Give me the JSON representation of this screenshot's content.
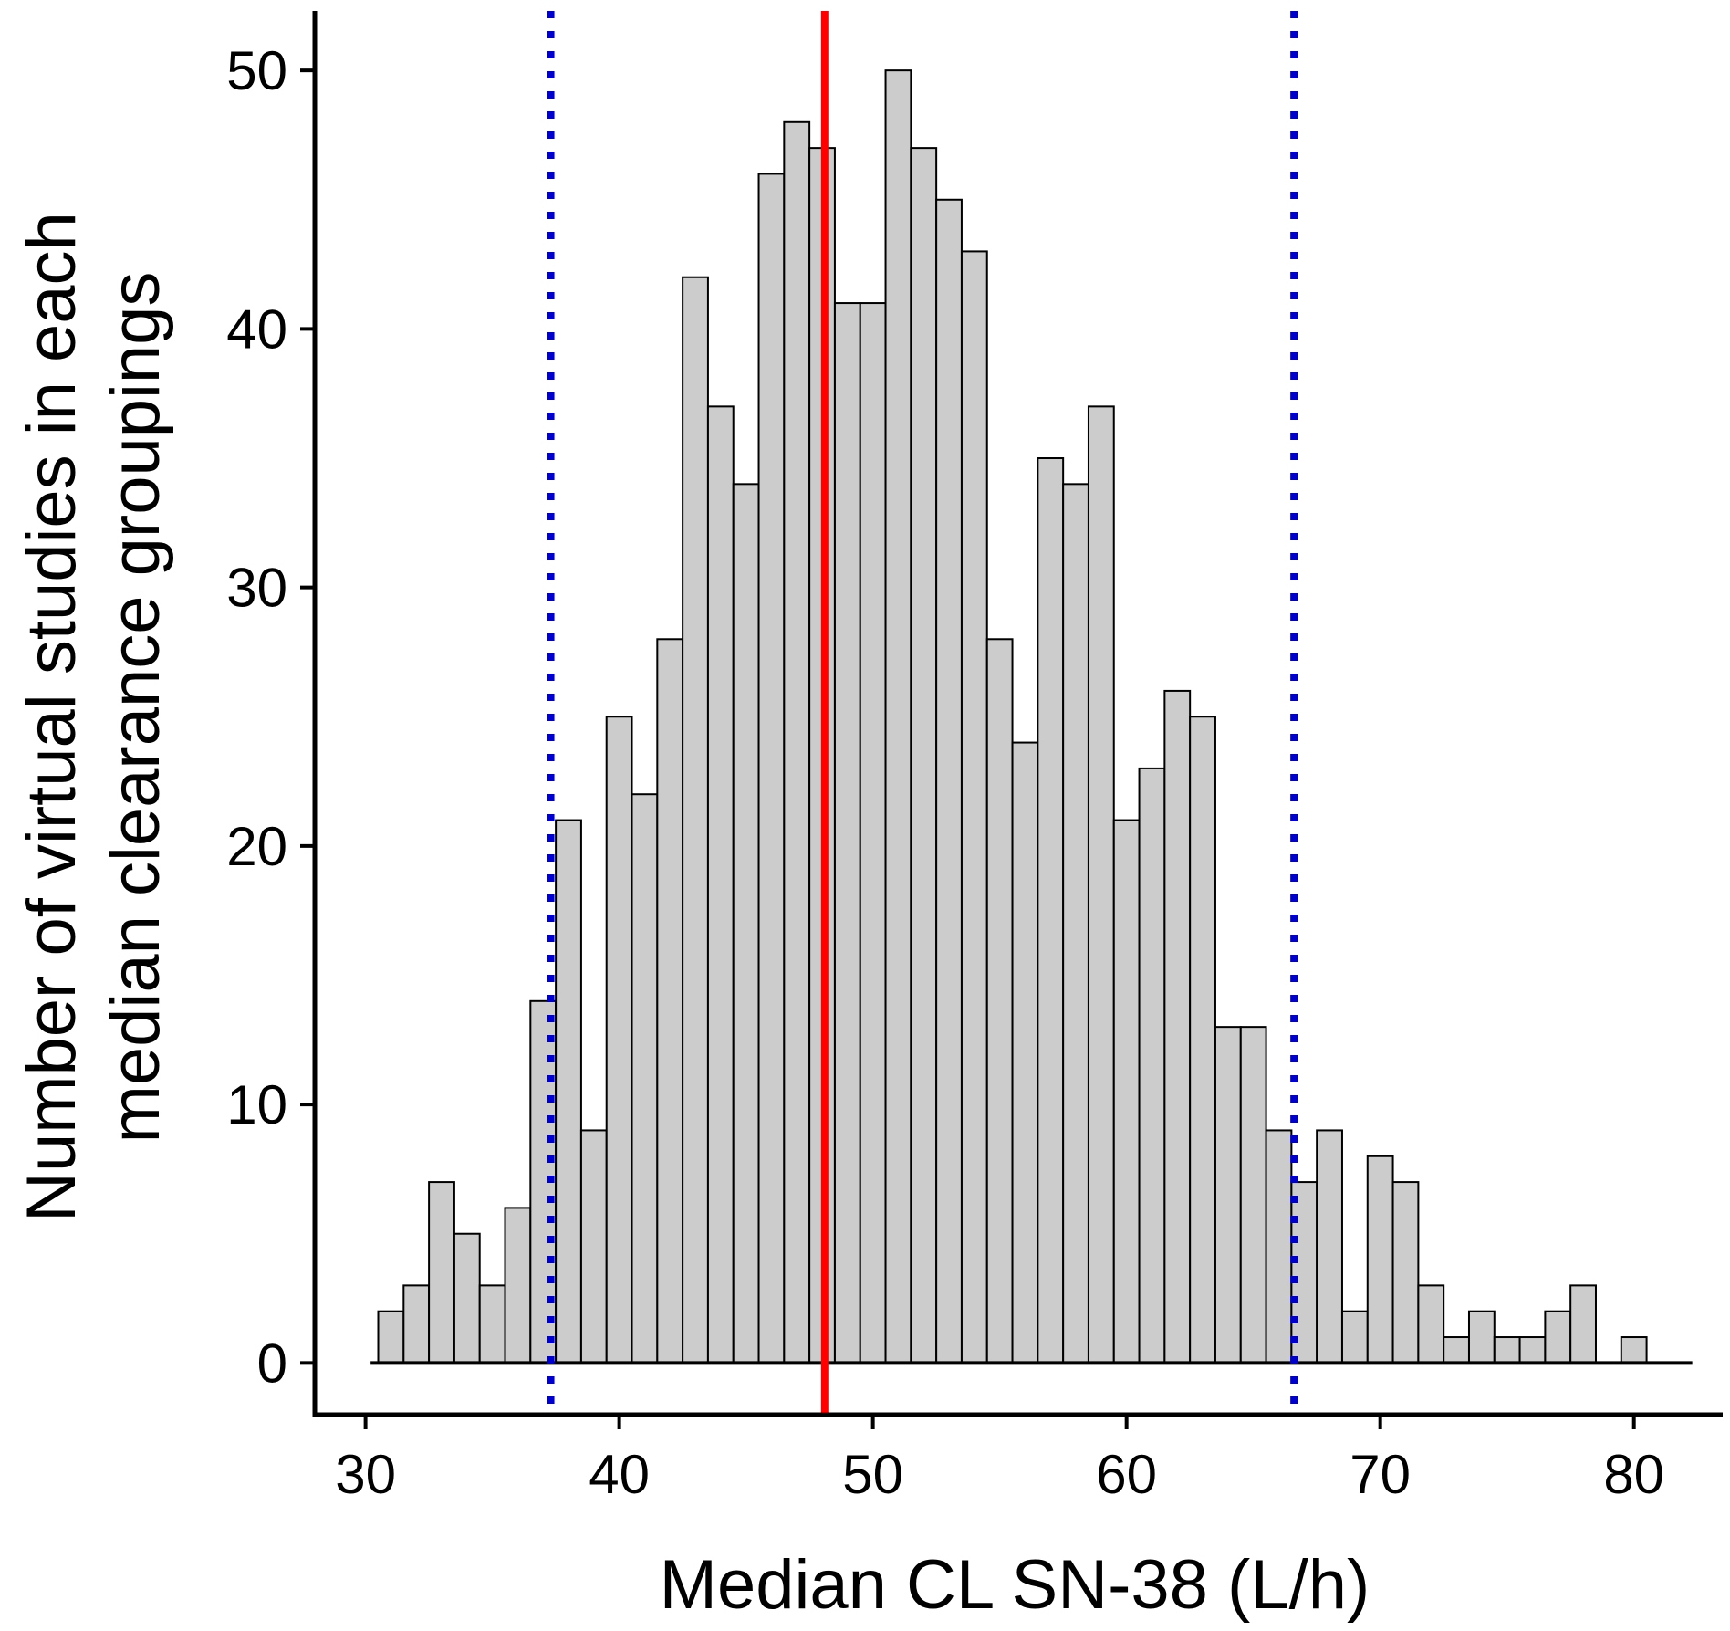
{
  "chart_data": {
    "type": "bar",
    "subtype": "histogram",
    "xlabel": "Median CL SN-38 (L/h)",
    "ylabel_lines": [
      "Number of virtual studies in each",
      "median clearance groupings"
    ],
    "xlim": [
      28,
      83.5
    ],
    "ylim": [
      -2,
      52.3
    ],
    "x_ticks": [
      30,
      40,
      50,
      60,
      70,
      80
    ],
    "y_ticks": [
      0,
      10,
      20,
      30,
      40,
      50
    ],
    "bin_width": 1,
    "bins_start": [
      30.5,
      31.5,
      32.5,
      33.5,
      34.5,
      35.5,
      36.5,
      37.5,
      38.5,
      39.5,
      40.5,
      41.5,
      42.5,
      43.5,
      44.5,
      45.5,
      46.5,
      47.5,
      48.5,
      49.5,
      50.5,
      51.5,
      52.5,
      53.5,
      54.5,
      55.5,
      56.5,
      57.5,
      58.5,
      59.5,
      60.5,
      61.5,
      62.5,
      63.5,
      64.5,
      65.5,
      66.5,
      67.5,
      68.5,
      69.5,
      70.5,
      71.5,
      72.5,
      73.5,
      74.5,
      75.5,
      76.5,
      77.5,
      78.5,
      79.5,
      80.5
    ],
    "values": [
      2,
      3,
      7,
      5,
      3,
      6,
      14,
      21,
      9,
      25,
      22,
      28,
      42,
      37,
      34,
      46,
      48,
      47,
      41,
      41,
      50,
      47,
      45,
      43,
      28,
      24,
      35,
      34,
      37,
      21,
      23,
      26,
      25,
      13,
      13,
      9,
      7,
      9,
      2,
      8,
      7,
      3,
      1,
      2,
      1,
      1,
      2,
      3,
      0,
      1
    ],
    "baseline_range": [
      30.2,
      82.3
    ],
    "reference_lines": [
      {
        "x": 48.1,
        "style": "solid",
        "color": "#ff0000"
      },
      {
        "x": 37.3,
        "style": "dotted",
        "color": "#0000cc"
      },
      {
        "x": 66.6,
        "style": "dotted",
        "color": "#0000cc"
      }
    ],
    "bar_fill": "#cccccc",
    "grid": false,
    "legend": "none"
  }
}
